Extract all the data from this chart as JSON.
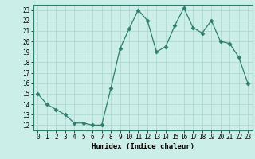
{
  "x": [
    0,
    1,
    2,
    3,
    4,
    5,
    6,
    7,
    8,
    9,
    10,
    11,
    12,
    13,
    14,
    15,
    16,
    17,
    18,
    19,
    20,
    21,
    22,
    23
  ],
  "y": [
    15,
    14,
    13.5,
    13,
    12.2,
    12.2,
    12,
    12,
    15.5,
    19.3,
    21.2,
    23,
    22,
    19,
    19.5,
    21.5,
    23.2,
    21.3,
    20.8,
    22,
    20,
    19.8,
    18.5,
    16
  ],
  "line_color": "#2e7d6e",
  "marker": "D",
  "marker_size": 2.5,
  "bg_color": "#cceee8",
  "grid_color": "#aad4cc",
  "xlabel": "Humidex (Indice chaleur)",
  "xlim": [
    -0.5,
    23.5
  ],
  "ylim": [
    11.5,
    23.5
  ],
  "yticks": [
    12,
    13,
    14,
    15,
    16,
    17,
    18,
    19,
    20,
    21,
    22,
    23
  ],
  "xticks": [
    0,
    1,
    2,
    3,
    4,
    5,
    6,
    7,
    8,
    9,
    10,
    11,
    12,
    13,
    14,
    15,
    16,
    17,
    18,
    19,
    20,
    21,
    22,
    23
  ],
  "xlabel_fontsize": 6.5,
  "tick_fontsize": 5.5
}
